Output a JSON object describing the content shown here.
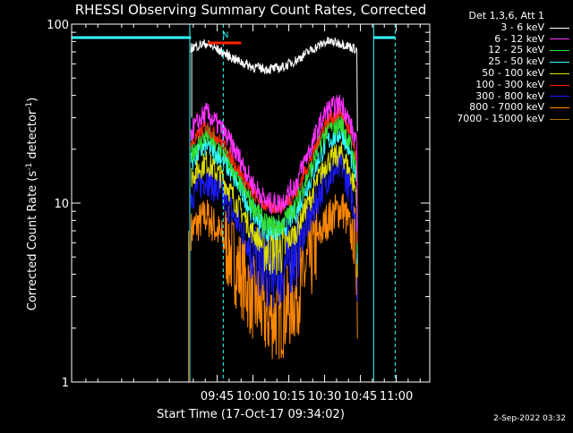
{
  "chart_data": {
    "type": "line",
    "title": "RHESSI Observing Summary Count Rates, Corrected",
    "xlabel": "Start Time (17-Oct-17 09:34:02)",
    "ylabel_main": "Corrected Count Rate (s",
    "ylabel_sup1": "-1",
    "ylabel_mid": " detector",
    "ylabel_sup2": "-1",
    "ylabel_end": ")",
    "y_scale": "log",
    "ylim": [
      1,
      100
    ],
    "xlim_minutes": [
      -50,
      100
    ],
    "x_ticks": [
      "09:45",
      "10:00",
      "10:15",
      "10:30",
      "10:45",
      "11:00"
    ],
    "y_ticks": [
      "1",
      "10",
      "100"
    ],
    "detector_label": "Det 1,3,6, Att 1",
    "flag_label": "N",
    "timestamp": "2-Sep-2022 03:32",
    "series": [
      {
        "name": "3 - 6 keV",
        "color": "#ffffff",
        "start": 0,
        "end": 0,
        "profile": [
          74,
          78,
          70,
          63,
          58,
          56,
          57,
          63,
          72,
          80,
          78,
          72
        ],
        "noise": 0.08
      },
      {
        "name": "6 - 12 keV",
        "color": "#ff33ff",
        "start": 0,
        "end": 0,
        "profile": [
          25,
          32,
          26,
          19,
          13,
          10,
          10,
          13,
          21,
          33,
          36,
          20
        ],
        "noise": 0.18
      },
      {
        "name": "12 - 25 keV",
        "color": "#33dd33",
        "start": 0,
        "end": 0,
        "profile": [
          19,
          24,
          20,
          14,
          10,
          7.5,
          7.5,
          10,
          16,
          26,
          28,
          15
        ],
        "noise": 0.18
      },
      {
        "name": "25 - 50 keV",
        "color": "#33ffff",
        "start": 0,
        "end": 0,
        "profile": [
          17,
          21,
          18,
          13,
          9,
          7,
          7,
          9,
          14,
          22,
          25,
          13
        ],
        "noise": 0.18
      },
      {
        "name": "50 - 100 keV",
        "color": "#dddd00",
        "start": 0,
        "end": 0,
        "profile": [
          14,
          17,
          14,
          10,
          7,
          5.5,
          5.5,
          7,
          11,
          17,
          19,
          11
        ],
        "noise": 0.2
      },
      {
        "name": "100 - 300 keV",
        "color": "#ff2200",
        "start": 0,
        "end": 0,
        "profile": [
          21,
          27,
          22,
          16,
          11.5,
          9.5,
          9.5,
          11.5,
          18,
          29,
          32,
          17
        ],
        "noise": 0.12
      },
      {
        "name": "300 - 800 keV",
        "color": "#1a1aff",
        "start": 0,
        "end": 0,
        "profile": [
          11,
          14,
          11,
          8,
          5.5,
          4.2,
          4.2,
          5.5,
          8.5,
          14,
          16,
          8
        ],
        "noise": 0.28
      },
      {
        "name": "800 - 7000 keV",
        "color": "#ff8800",
        "start": 0,
        "end": 0,
        "profile": [
          7,
          8.5,
          6.5,
          4.5,
          3,
          2.3,
          2.3,
          3,
          5,
          8,
          9.5,
          5
        ],
        "noise": 0.32
      },
      {
        "name": "7000 - 15000 keV",
        "color": "#aa7700",
        "start": 0,
        "end": 0,
        "profile": [],
        "noise": 0
      }
    ]
  }
}
